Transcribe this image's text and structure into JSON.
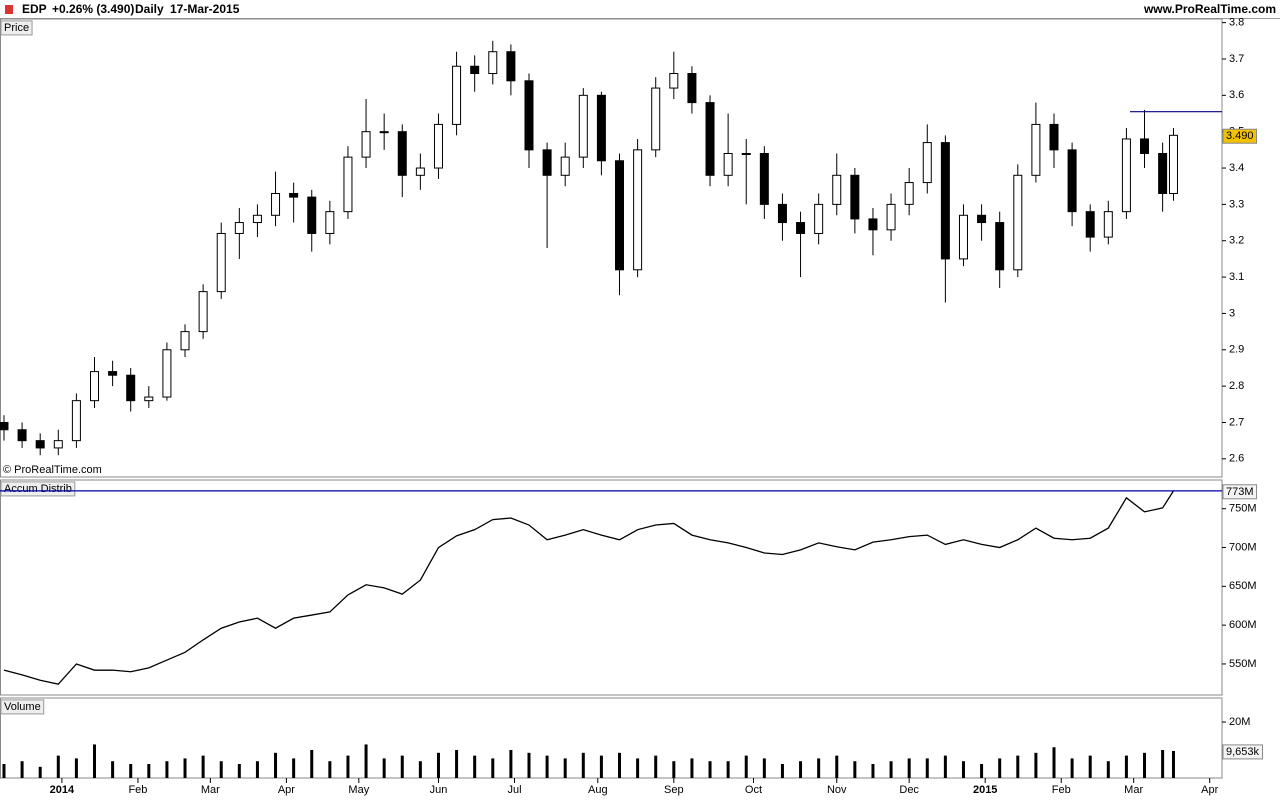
{
  "header": {
    "symbol": "EDP",
    "change": "+0.26% (3.490)",
    "period": "Daily",
    "date": "17-Mar-2015",
    "site": "www.ProRealTime.com",
    "copyright": "© ProRealTime.com"
  },
  "chart_data": [
    {
      "type": "candlestick",
      "title": "Price",
      "x": [
        0,
        5,
        10,
        15,
        20,
        25,
        30,
        35,
        40,
        45,
        50,
        55,
        60,
        65,
        70,
        75,
        80,
        85,
        90,
        95,
        100,
        105,
        110,
        115,
        120,
        125,
        130,
        135,
        140,
        145,
        150,
        155,
        160,
        165,
        170,
        175,
        180,
        185,
        190,
        195,
        200,
        205,
        210,
        215,
        220,
        225,
        230,
        235,
        240,
        245,
        250,
        255,
        260,
        265,
        270,
        275,
        280,
        285,
        290,
        295,
        300,
        305,
        310,
        315,
        320,
        323
      ],
      "open": [
        2.7,
        2.68,
        2.65,
        2.63,
        2.65,
        2.76,
        2.84,
        2.83,
        2.76,
        2.77,
        2.9,
        2.95,
        3.06,
        3.22,
        3.25,
        3.27,
        3.33,
        3.32,
        3.22,
        3.28,
        3.43,
        3.5,
        3.5,
        3.38,
        3.4,
        3.52,
        3.68,
        3.66,
        3.72,
        3.64,
        3.45,
        3.38,
        3.43,
        3.6,
        3.42,
        3.12,
        3.45,
        3.62,
        3.66,
        3.58,
        3.38,
        3.44,
        3.44,
        3.3,
        3.25,
        3.22,
        3.3,
        3.38,
        3.26,
        3.23,
        3.3,
        3.36,
        3.47,
        3.15,
        3.27,
        3.25,
        3.12,
        3.38,
        3.52,
        3.45,
        3.28,
        3.21,
        3.28,
        3.48,
        3.44,
        3.33
      ],
      "high": [
        2.72,
        2.7,
        2.67,
        2.68,
        2.78,
        2.88,
        2.87,
        2.85,
        2.8,
        2.92,
        2.97,
        3.08,
        3.25,
        3.29,
        3.3,
        3.39,
        3.36,
        3.34,
        3.31,
        3.46,
        3.59,
        3.55,
        3.52,
        3.44,
        3.55,
        3.72,
        3.71,
        3.75,
        3.74,
        3.66,
        3.47,
        3.47,
        3.62,
        3.61,
        3.44,
        3.48,
        3.65,
        3.72,
        3.68,
        3.6,
        3.55,
        3.48,
        3.46,
        3.33,
        3.28,
        3.33,
        3.44,
        3.4,
        3.29,
        3.33,
        3.4,
        3.52,
        3.49,
        3.3,
        3.3,
        3.28,
        3.41,
        3.58,
        3.55,
        3.47,
        3.3,
        3.31,
        3.51,
        3.56,
        3.47,
        3.51
      ],
      "low": [
        2.65,
        2.63,
        2.61,
        2.61,
        2.63,
        2.74,
        2.8,
        2.73,
        2.74,
        2.76,
        2.88,
        2.93,
        3.04,
        3.15,
        3.21,
        3.24,
        3.25,
        3.17,
        3.19,
        3.26,
        3.4,
        3.45,
        3.32,
        3.34,
        3.37,
        3.49,
        3.61,
        3.63,
        3.6,
        3.4,
        3.18,
        3.35,
        3.4,
        3.38,
        3.05,
        3.1,
        3.43,
        3.59,
        3.55,
        3.35,
        3.35,
        3.3,
        3.26,
        3.2,
        3.1,
        3.19,
        3.27,
        3.22,
        3.16,
        3.2,
        3.27,
        3.33,
        3.03,
        3.13,
        3.2,
        3.07,
        3.1,
        3.36,
        3.4,
        3.24,
        3.17,
        3.19,
        3.26,
        3.4,
        3.28,
        3.31
      ],
      "close": [
        2.68,
        2.65,
        2.63,
        2.65,
        2.76,
        2.84,
        2.83,
        2.76,
        2.77,
        2.9,
        2.95,
        3.06,
        3.22,
        3.25,
        3.27,
        3.33,
        3.32,
        3.22,
        3.28,
        3.43,
        3.5,
        3.5,
        3.38,
        3.4,
        3.52,
        3.68,
        3.66,
        3.72,
        3.64,
        3.45,
        3.38,
        3.43,
        3.6,
        3.42,
        3.12,
        3.45,
        3.62,
        3.66,
        3.58,
        3.38,
        3.44,
        3.44,
        3.3,
        3.25,
        3.22,
        3.3,
        3.38,
        3.26,
        3.23,
        3.3,
        3.36,
        3.47,
        3.15,
        3.27,
        3.25,
        3.12,
        3.38,
        3.52,
        3.45,
        3.28,
        3.21,
        3.28,
        3.48,
        3.44,
        3.33,
        3.49
      ],
      "up_color": "#ffffff",
      "down_color": "#000000",
      "ylim": [
        2.55,
        3.81
      ],
      "yticks": [
        2.6,
        2.7,
        2.8,
        2.9,
        3,
        3.1,
        3.2,
        3.3,
        3.4,
        3.5,
        3.6,
        3.7,
        3.8
      ],
      "last": {
        "value": 3.49,
        "label": "3.490"
      },
      "last_color": "#f2c200",
      "hline": {
        "x_start": 311,
        "value": 3.555,
        "color": "#000080"
      },
      "xlim": [
        -1.1,
        336.4
      ],
      "xticks": [
        {
          "value": 16,
          "label": "2014"
        },
        {
          "value": 37,
          "label": "Feb"
        },
        {
          "value": 57,
          "label": "Mar"
        },
        {
          "value": 78,
          "label": "Apr"
        },
        {
          "value": 98,
          "label": "May"
        },
        {
          "value": 120,
          "label": "Jun"
        },
        {
          "value": 141,
          "label": "Jul"
        },
        {
          "value": 164,
          "label": "Aug"
        },
        {
          "value": 185,
          "label": "Sep"
        },
        {
          "value": 207,
          "label": "Oct"
        },
        {
          "value": 230,
          "label": "Nov"
        },
        {
          "value": 250,
          "label": "Dec"
        },
        {
          "value": 271,
          "label": "2015"
        },
        {
          "value": 292,
          "label": "Feb"
        },
        {
          "value": 312,
          "label": "Mar"
        },
        {
          "value": 333,
          "label": "Apr"
        }
      ]
    },
    {
      "type": "line",
      "title": "Accum Distrib",
      "color": "#000000",
      "values": [
        542,
        536,
        529,
        524,
        550,
        542,
        542,
        540,
        545,
        555,
        565,
        581,
        596,
        604,
        609,
        596,
        609,
        613,
        617,
        639,
        652,
        648,
        640,
        658,
        700,
        715,
        723,
        736,
        738,
        729,
        710,
        716,
        723,
        716,
        710,
        723,
        729,
        731,
        716,
        710,
        706,
        700,
        693,
        691,
        697,
        706,
        701,
        697,
        707,
        710,
        714,
        716,
        704,
        710,
        704,
        700,
        710,
        725,
        712,
        710,
        712,
        725,
        764,
        746,
        751,
        773
      ],
      "ylim": [
        510,
        787
      ],
      "yticks": [
        {
          "value": 550,
          "label": "550M"
        },
        {
          "value": 600,
          "label": "600M"
        },
        {
          "value": 650,
          "label": "650M"
        },
        {
          "value": 700,
          "label": "700M"
        },
        {
          "value": 750,
          "label": "750M"
        }
      ],
      "last": {
        "value": 773,
        "label": "773M"
      },
      "hline": {
        "value": 773,
        "color": "#0000aa"
      }
    },
    {
      "type": "bar",
      "title": "Volume",
      "color": "#000000",
      "values": [
        5,
        6,
        4,
        8,
        7,
        12,
        6,
        5,
        5,
        6,
        7,
        8,
        6,
        5,
        6,
        9,
        7,
        10,
        6,
        8,
        12,
        7,
        8,
        6,
        9,
        10,
        8,
        7,
        10,
        9,
        8,
        7,
        9,
        8,
        9,
        7,
        8,
        6,
        7,
        6,
        6,
        8,
        7,
        5,
        6,
        7,
        8,
        6,
        5,
        6,
        7,
        7,
        8,
        6,
        5,
        7,
        8,
        9,
        11,
        7,
        8,
        6,
        8,
        9,
        10,
        9.653
      ],
      "ylim": [
        0,
        28.6
      ],
      "yticks": [
        {
          "value": 20,
          "label": "20M"
        }
      ],
      "last": {
        "value": 9.653,
        "label": "9,653k"
      }
    }
  ]
}
